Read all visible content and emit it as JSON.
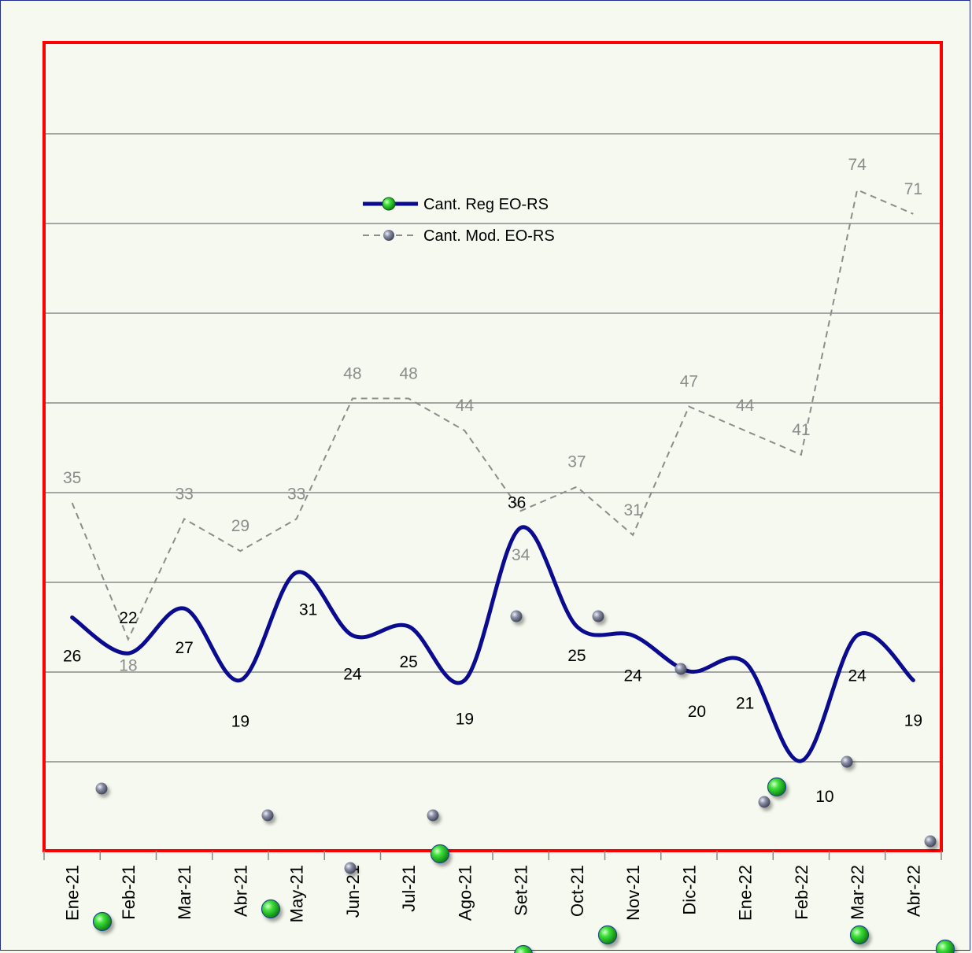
{
  "chart_data": {
    "type": "line",
    "categories": [
      "Ene-21",
      "Feb-21",
      "Mar-21",
      "Abr-21",
      "May-21",
      "Jun-21",
      "Jul-21",
      "Ago-21",
      "Set-21",
      "Oct-21",
      "Nov-21",
      "Dic-21",
      "Ene-22",
      "Feb-22",
      "Mar-22",
      "Abr-22"
    ],
    "series": [
      {
        "name": "Cant. Reg EO-RS",
        "values": [
          26,
          22,
          27,
          19,
          31,
          24,
          25,
          19,
          36,
          25,
          24,
          20,
          21,
          10,
          24,
          19
        ],
        "color": "#0b0b8f",
        "line_style": "solid",
        "marker": "green-sphere"
      },
      {
        "name": "Cant. Mod. EO-RS",
        "values": [
          35,
          18,
          33,
          29,
          33,
          48,
          48,
          44,
          34,
          37,
          31,
          47,
          44,
          41,
          74,
          71
        ],
        "color": "#8c8c8c",
        "line_style": "dashed",
        "marker": "grey-sphere"
      }
    ],
    "legend_position": "top-center",
    "grid": "horizontal",
    "plot_border_color": "#ff0000",
    "gridline_color": "#8a8a8a"
  }
}
